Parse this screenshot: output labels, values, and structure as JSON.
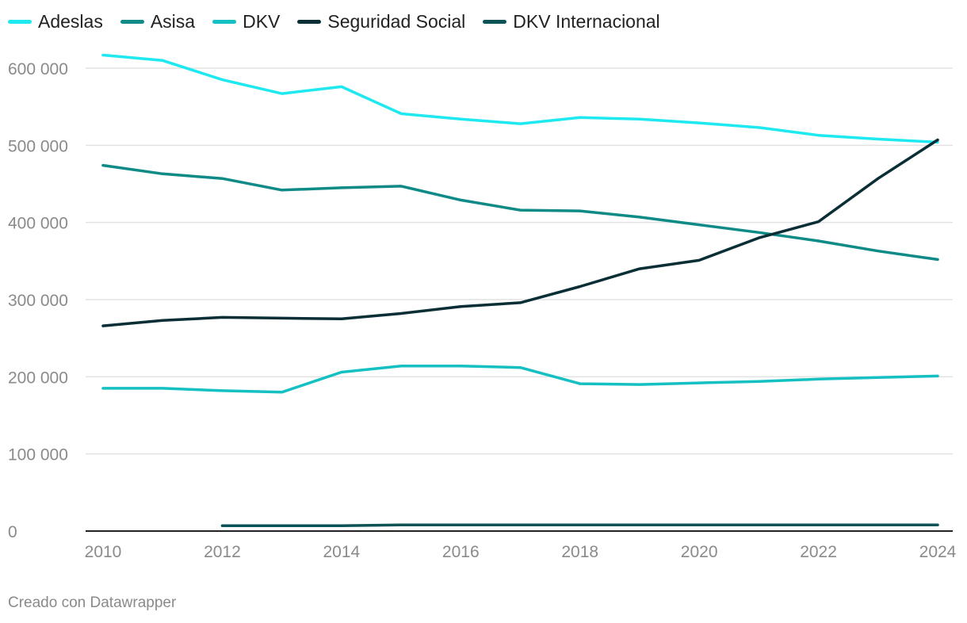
{
  "footer": "Creado con Datawrapper",
  "chart_data": {
    "type": "line",
    "title": "",
    "xlabel": "",
    "ylabel": "",
    "x": [
      2010,
      2011,
      2012,
      2013,
      2014,
      2015,
      2016,
      2017,
      2018,
      2019,
      2020,
      2021,
      2022,
      2023,
      2024
    ],
    "xticks": [
      "2010",
      "2012",
      "2014",
      "2016",
      "2018",
      "2020",
      "2022",
      "2024"
    ],
    "xlim": [
      2010,
      2024
    ],
    "ylim": [
      0,
      600000
    ],
    "yticks": [
      0,
      100000,
      200000,
      300000,
      400000,
      500000,
      600000
    ],
    "ytick_labels": [
      "0",
      "100 000",
      "200 000",
      "300 000",
      "400 000",
      "500 000",
      "600 000"
    ],
    "legend_position": "top-left",
    "series": [
      {
        "name": "Adeslas",
        "color": "#1ee8f0",
        "values": [
          617000,
          610000,
          585000,
          567000,
          576000,
          541000,
          534000,
          528000,
          536000,
          534000,
          529000,
          523000,
          513000,
          508000,
          504000
        ]
      },
      {
        "name": "Asisa",
        "color": "#0e8a87",
        "values": [
          474000,
          463000,
          457000,
          442000,
          445000,
          447000,
          429000,
          416000,
          415000,
          407000,
          397000,
          387000,
          376000,
          363000,
          352000
        ]
      },
      {
        "name": "DKV",
        "color": "#15c0c3",
        "values": [
          185000,
          185000,
          182000,
          180000,
          206000,
          214000,
          214000,
          212000,
          191000,
          190000,
          192000,
          194000,
          197000,
          199000,
          201000
        ]
      },
      {
        "name": "Seguridad Social",
        "color": "#0a2e35",
        "values": [
          266000,
          273000,
          277000,
          276000,
          275000,
          282000,
          291000,
          296000,
          317000,
          340000,
          351000,
          380000,
          401000,
          457000,
          507000
        ]
      },
      {
        "name": "DKV Internacional",
        "color": "#0b5256",
        "values": [
          null,
          null,
          7000,
          7000,
          7000,
          8000,
          8000,
          8000,
          8000,
          8000,
          8000,
          8000,
          8000,
          8000,
          8000
        ]
      }
    ]
  }
}
